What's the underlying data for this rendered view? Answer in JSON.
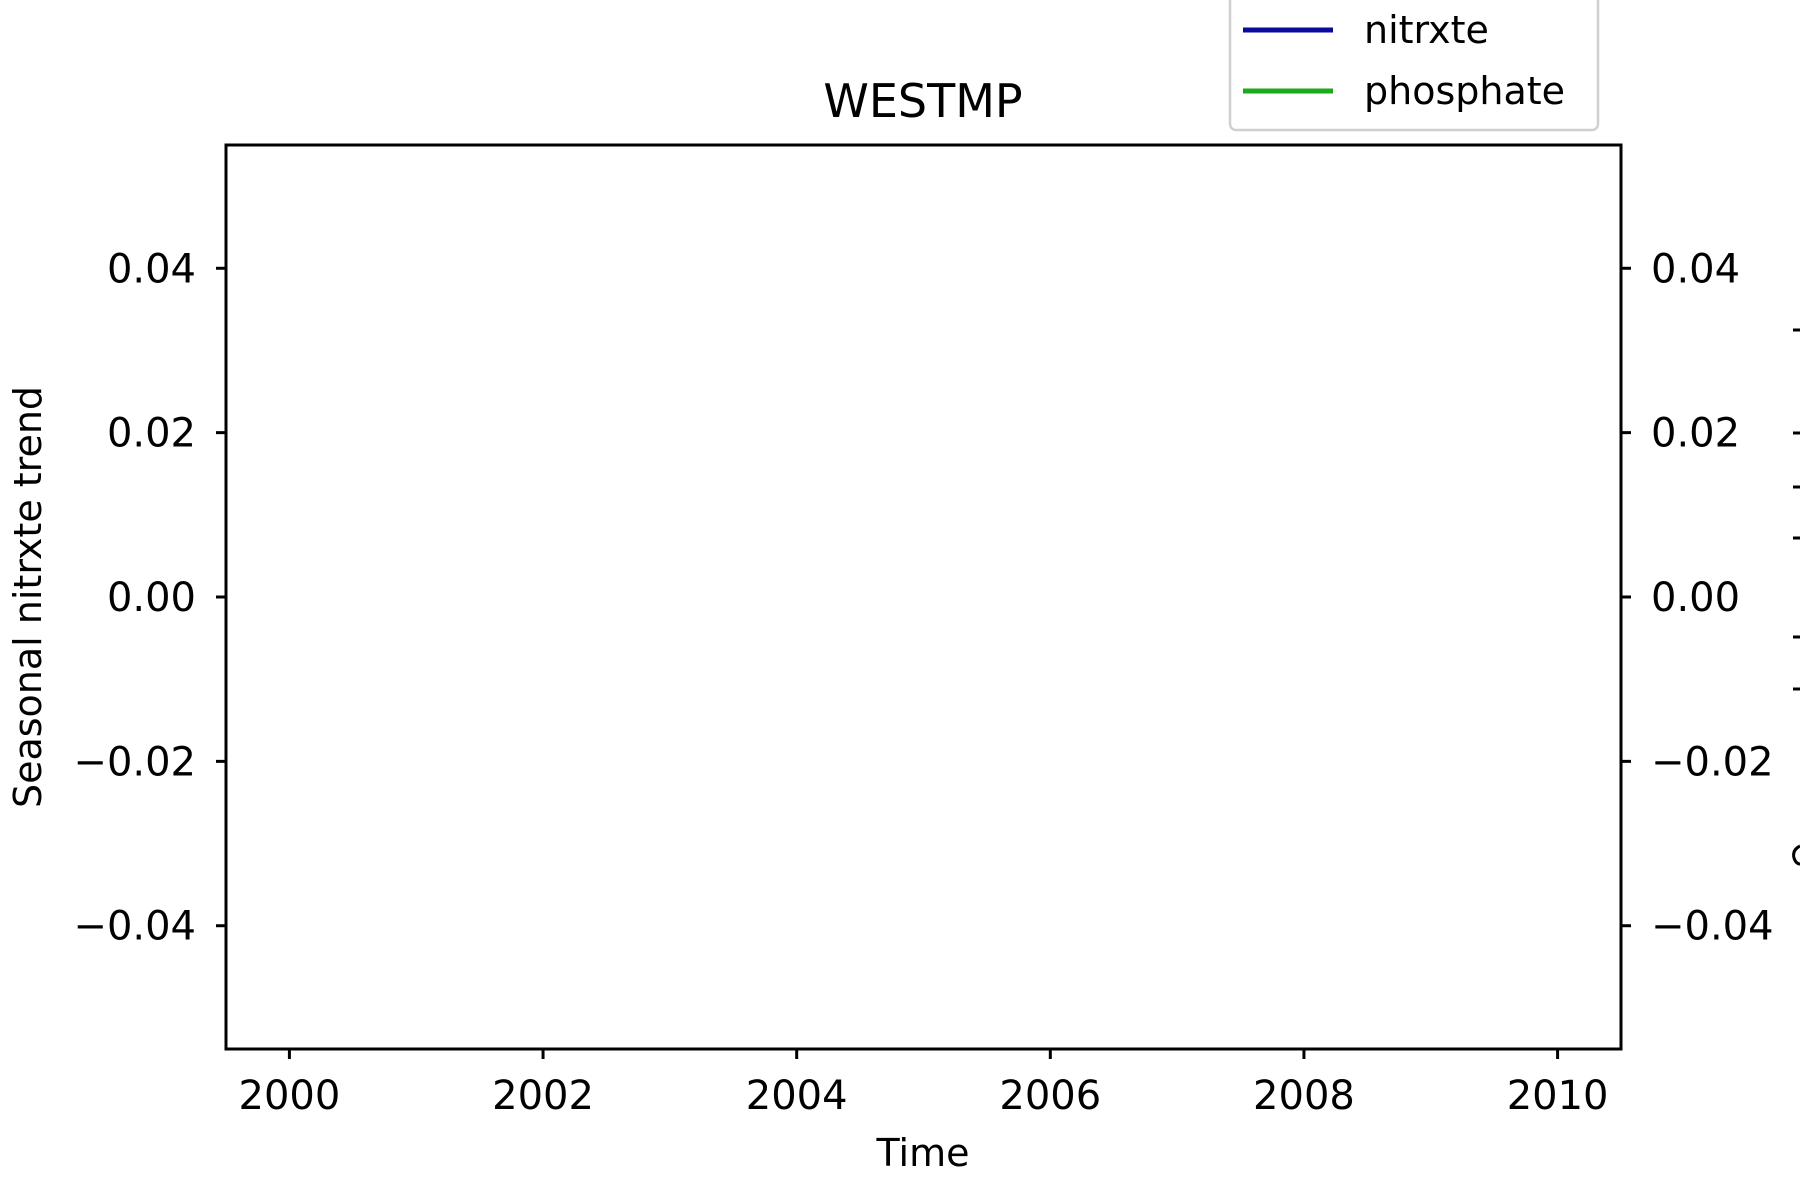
{
  "chart_data": {
    "type": "line",
    "title": "WESTMP",
    "xlabel": "Time",
    "ylabel": "Seasonal nitrxte trend",
    "xlim": [
      1999.5,
      2010.5
    ],
    "ylim": [
      -0.055,
      0.055
    ],
    "x_ticks": [
      2000,
      2002,
      2004,
      2006,
      2008,
      2010
    ],
    "x_tick_labels": [
      "2000",
      "2002",
      "2004",
      "2006",
      "2008",
      "2010"
    ],
    "y_ticks": [
      0.04,
      0.02,
      0.0,
      -0.02,
      -0.04
    ],
    "y_tick_labels": [
      "0.04",
      "0.02",
      "0.00",
      "−0.02",
      "−0.04"
    ],
    "right_y_tick_labels": [
      "0.04",
      "0.02",
      "0.00",
      "−0.02",
      "−0.04"
    ],
    "grid": false,
    "legend_position": "top-right",
    "series": [
      {
        "name": "nitrxte",
        "color": "#0a0a9e",
        "points": []
      },
      {
        "name": "phosphate",
        "color": "#1aaa1a",
        "points": []
      }
    ]
  }
}
